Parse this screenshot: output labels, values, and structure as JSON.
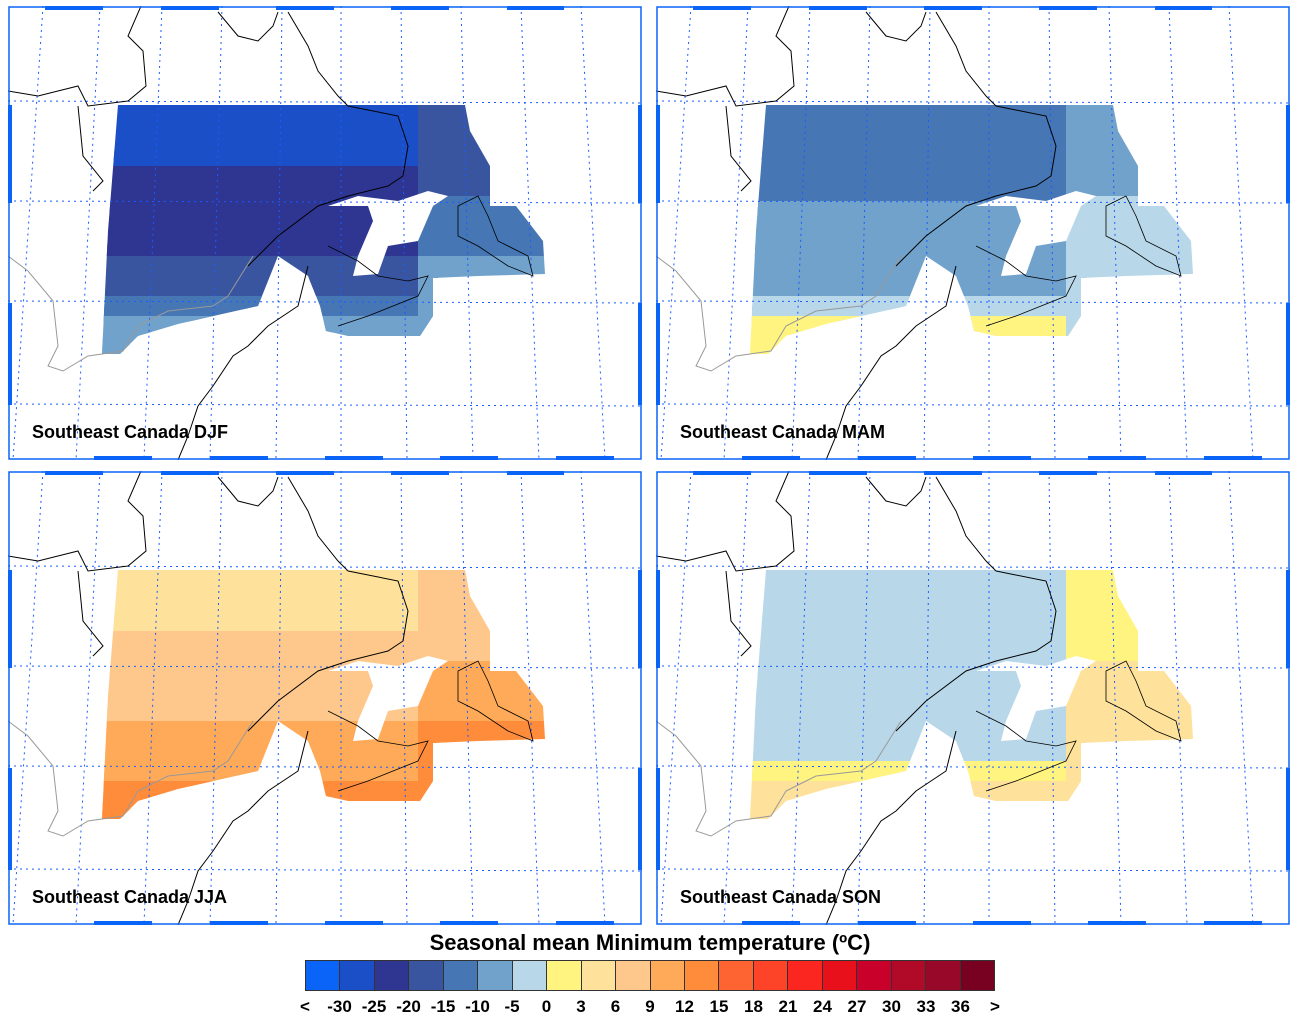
{
  "panels": [
    {
      "title": "Southeast Canada DJF",
      "bands": [
        "#1a4fc8",
        "#2e3692",
        "#2e3692",
        "#3a55a0",
        "#4676b4",
        "#70a2cc"
      ],
      "east": [
        "#3a55a0",
        "#4676b4",
        "#70a2cc"
      ]
    },
    {
      "title": "Southeast Canada MAM",
      "bands": [
        "#4676b4",
        "#4676b4",
        "#70a2cc",
        "#70a2cc",
        "#b8d8ea",
        "#fff480"
      ],
      "east": [
        "#70a2cc",
        "#b8d8ea",
        "#b8d8ea"
      ]
    },
    {
      "title": "Southeast Canada JJA",
      "bands": [
        "#fee19a",
        "#fec88c",
        "#fec88c",
        "#feaa58",
        "#feaa58",
        "#fe8c3a"
      ],
      "east": [
        "#fec88c",
        "#feaa58",
        "#fe8c3a"
      ]
    },
    {
      "title": "Southeast Canada SON",
      "bands": [
        "#b8d8ea",
        "#b8d8ea",
        "#b8d8ea",
        "#b8d8ea",
        "#fff480",
        "#fee19a"
      ],
      "east": [
        "#fff480",
        "#fee19a",
        "#fee19a"
      ]
    }
  ],
  "colorbar": {
    "title": "Seasonal mean Minimum temperature (ºC)",
    "colors": [
      "#0a64f8",
      "#1a4fc8",
      "#2e3692",
      "#3a55a0",
      "#4676b4",
      "#70a2cc",
      "#b8d8ea",
      "#fff480",
      "#fee19a",
      "#fec88c",
      "#feaa58",
      "#fe8c3a",
      "#fe6432",
      "#fe4428",
      "#fc2620",
      "#e8101a",
      "#c8002a",
      "#b00a28",
      "#980828",
      "#780020"
    ],
    "labels": [
      "<",
      "-30",
      "-25",
      "-20",
      "-15",
      "-10",
      "-5",
      "0",
      "3",
      "6",
      "9",
      "12",
      "15",
      "18",
      "21",
      "24",
      "27",
      "30",
      "33",
      "36",
      ">"
    ]
  },
  "frame_color": "#0a64f8"
}
